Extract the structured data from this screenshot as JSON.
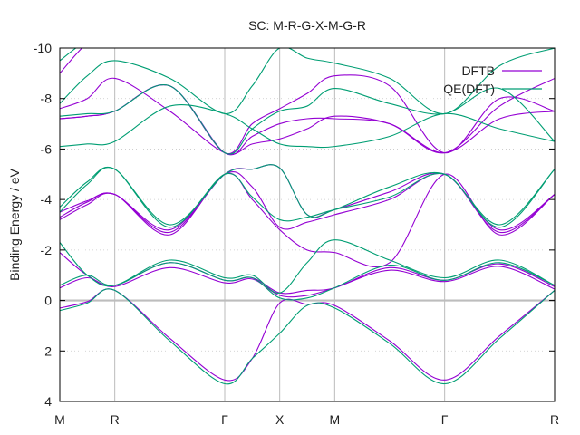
{
  "chart_data": {
    "type": "line",
    "title": "SC: M-R-G-X-M-G-R",
    "ylabel": "Binding Energy / eV",
    "xlabel": "",
    "ylim": [
      -10,
      4
    ],
    "yticks": [
      -10,
      -8,
      -6,
      -4,
      -2,
      0,
      2,
      4
    ],
    "ytick_labels": [
      "-10",
      "-8",
      "-6",
      "-4",
      "-2",
      "0",
      "2",
      "4"
    ],
    "x_range": [
      0,
      9
    ],
    "kpoints": [
      {
        "label": "M",
        "x": 0
      },
      {
        "label": "R",
        "x": 1
      },
      {
        "label": "Γ",
        "x": 3
      },
      {
        "label": "X",
        "x": 4
      },
      {
        "label": "M",
        "x": 5
      },
      {
        "label": "Γ",
        "x": 7
      },
      {
        "label": "R",
        "x": 9
      }
    ],
    "fermi_level": 0,
    "grid": true,
    "legend_position": "top-right",
    "series": [
      {
        "name": "DFTB",
        "color": "#9400d3",
        "bands": [
          {
            "x": [
              0,
              0.5,
              1,
              2,
              3,
              3.5,
              4,
              4.5,
              5,
              6,
              7,
              8,
              9
            ],
            "y": [
              0.3,
              0.05,
              -0.4,
              1.5,
              3.15,
              2.3,
              0.1,
              0.15,
              0.2,
              1.6,
              3.15,
              1.4,
              -0.4
            ]
          },
          {
            "x": [
              0,
              0.5,
              1,
              2,
              3,
              3.5,
              4,
              4.5,
              5,
              6,
              7,
              8,
              9
            ],
            "y": [
              -0.5,
              -0.9,
              -0.55,
              -1.3,
              -0.7,
              -0.85,
              -0.2,
              -0.2,
              -0.5,
              -1.2,
              -0.75,
              -1.35,
              -0.45
            ]
          },
          {
            "x": [
              0,
              0.5,
              1,
              2,
              3,
              3.5,
              4,
              4.5,
              5,
              6,
              7,
              8,
              9
            ],
            "y": [
              -1.9,
              -1.0,
              -0.6,
              -1.5,
              -0.8,
              -0.9,
              -0.3,
              -0.4,
              -0.5,
              -1.3,
              -0.8,
              -1.45,
              -0.55
            ]
          },
          {
            "x": [
              0,
              0.5,
              1,
              2,
              3,
              3.5,
              4,
              4.5,
              5,
              6,
              7,
              8,
              9
            ],
            "y": [
              -3.2,
              -3.8,
              -4.2,
              -2.6,
              -5.0,
              -4.0,
              -2.8,
              -2.0,
              -1.9,
              -1.5,
              -5.0,
              -2.6,
              -4.2
            ]
          },
          {
            "x": [
              0,
              0.5,
              1,
              2,
              3,
              3.5,
              4,
              4.5,
              5,
              6,
              7,
              8,
              9
            ],
            "y": [
              -3.3,
              -3.9,
              -4.2,
              -2.7,
              -5.0,
              -4.5,
              -2.9,
              -3.1,
              -3.4,
              -4.0,
              -5.0,
              -2.7,
              -4.2
            ]
          },
          {
            "x": [
              0,
              0.5,
              1,
              2,
              3,
              3.5,
              4,
              4.5,
              5,
              6,
              7,
              8,
              9
            ],
            "y": [
              -3.5,
              -3.95,
              -4.2,
              -2.8,
              -5.0,
              -5.2,
              -5.25,
              -3.4,
              -3.6,
              -4.3,
              -5.0,
              -2.8,
              -4.2
            ]
          },
          {
            "x": [
              0,
              0.5,
              1,
              2,
              3,
              3.5,
              4,
              4.5,
              5,
              6,
              7,
              8,
              9
            ],
            "y": [
              -7.2,
              -7.3,
              -7.5,
              -8.5,
              -5.85,
              -6.5,
              -7.0,
              -7.2,
              -7.2,
              -7.0,
              -5.85,
              -7.2,
              -7.5
            ]
          },
          {
            "x": [
              0,
              0.5,
              1,
              2,
              3,
              3.5,
              4,
              4.5,
              5,
              6,
              7,
              8,
              9
            ],
            "y": [
              -7.2,
              -7.3,
              -7.5,
              -8.5,
              -5.85,
              -7.0,
              -7.6,
              -8.2,
              -8.9,
              -8.5,
              -5.85,
              -8.0,
              -7.5
            ]
          },
          {
            "x": [
              0,
              0.5,
              1,
              2,
              3,
              3.5,
              4,
              4.5,
              5,
              6,
              7,
              8,
              9
            ],
            "y": [
              -7.6,
              -8.0,
              -8.8,
              -7.5,
              -5.85,
              -6.2,
              -6.4,
              -6.8,
              -7.3,
              -7.0,
              -5.85,
              -7.7,
              -8.8
            ]
          },
          {
            "x": [
              0,
              0.5,
              1,
              2,
              3
            ],
            "y": [
              -9.0,
              -10.2,
              -10.8,
              -10.8,
              -10.5
            ]
          }
        ]
      },
      {
        "name": "QE(DFT)",
        "color": "#009e73",
        "bands": [
          {
            "x": [
              0,
              0.5,
              1,
              2,
              3,
              3.5,
              4,
              4.5,
              5,
              6,
              7,
              8,
              9
            ],
            "y": [
              0.4,
              0.1,
              -0.4,
              1.6,
              3.3,
              2.3,
              1.3,
              0.2,
              0.3,
              1.7,
              3.3,
              1.5,
              -0.4
            ]
          },
          {
            "x": [
              0,
              0.5,
              1,
              2,
              3,
              3.5,
              4,
              4.5,
              5,
              6,
              7,
              8,
              9
            ],
            "y": [
              -0.6,
              -1.0,
              -0.6,
              -1.5,
              -0.8,
              -0.9,
              -0.1,
              -0.1,
              -0.5,
              -1.4,
              -0.8,
              -1.5,
              -0.6
            ]
          },
          {
            "x": [
              0,
              0.5,
              1,
              2,
              3,
              3.5,
              4,
              4.5,
              5,
              6,
              7,
              8,
              9
            ],
            "y": [
              -2.3,
              -1.0,
              -0.6,
              -1.6,
              -0.9,
              -1.0,
              -0.3,
              -1.5,
              -2.4,
              -1.6,
              -0.9,
              -1.6,
              -0.6
            ]
          },
          {
            "x": [
              0,
              0.5,
              1,
              2,
              3,
              3.5,
              4,
              4.5,
              5,
              6,
              7,
              8,
              9
            ],
            "y": [
              -3.5,
              -4.6,
              -5.2,
              -2.9,
              -5.0,
              -4.1,
              -3.2,
              -3.3,
              -3.6,
              -4.1,
              -5.0,
              -2.9,
              -5.2
            ]
          },
          {
            "x": [
              0,
              0.5,
              1,
              2,
              3,
              3.5,
              4,
              4.5,
              5,
              6,
              7,
              8,
              9
            ],
            "y": [
              -3.7,
              -4.7,
              -5.2,
              -3.0,
              -5.0,
              -5.2,
              -5.25,
              -3.4,
              -3.6,
              -4.5,
              -5.0,
              -3.0,
              -5.2
            ]
          },
          {
            "x": [
              0,
              0.5,
              1,
              2,
              3,
              3.5,
              4,
              4.5,
              5,
              6,
              7,
              8,
              9
            ],
            "y": [
              -6.1,
              -6.2,
              -6.3,
              -7.7,
              -7.4,
              -6.8,
              -6.2,
              -6.1,
              -6.1,
              -6.5,
              -7.4,
              -6.8,
              -6.3
            ]
          },
          {
            "x": [
              0,
              0.5,
              1,
              2,
              3,
              3.5,
              4,
              4.5,
              5,
              6,
              7,
              8,
              9
            ],
            "y": [
              -7.3,
              -7.4,
              -7.5,
              -8.5,
              -5.85,
              -6.8,
              -7.5,
              -7.7,
              -8.4,
              -7.8,
              -7.4,
              -8.4,
              -6.3
            ]
          },
          {
            "x": [
              0,
              0.5,
              1,
              2,
              3,
              3.5,
              4,
              4.5,
              5,
              6,
              7,
              8,
              9
            ],
            "y": [
              -7.8,
              -8.9,
              -9.5,
              -8.8,
              -7.4,
              -8.5,
              -10.0,
              -9.6,
              -9.4,
              -8.8,
              -7.4,
              -9.3,
              -10.0
            ]
          },
          {
            "x": [
              0,
              0.5,
              1,
              2,
              3
            ],
            "y": [
              -9.5,
              -10.3,
              -10.6,
              -10.5,
              -10.2
            ]
          }
        ]
      }
    ]
  }
}
